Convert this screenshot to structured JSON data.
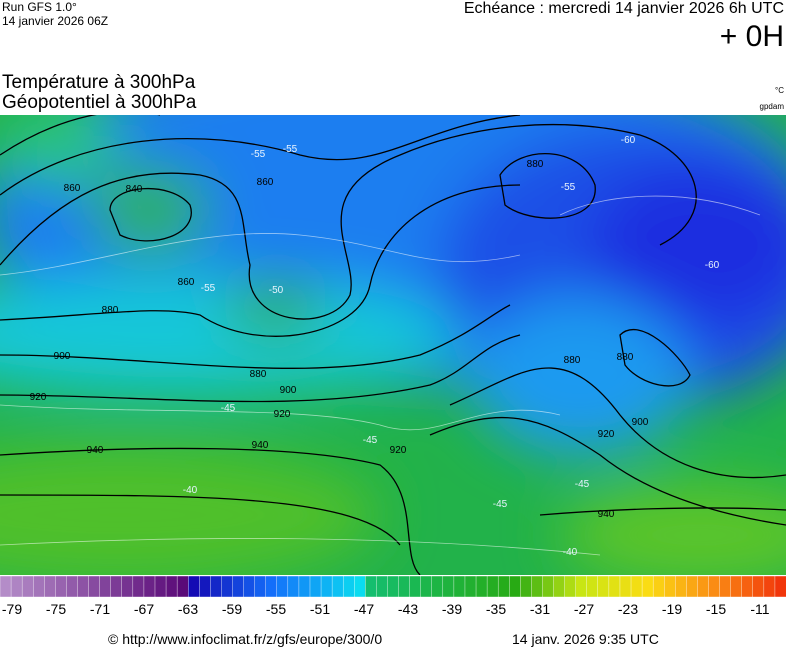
{
  "header": {
    "run": "Run GFS 1.0°",
    "run_date": "14 janvier 2026 06Z",
    "valid": "Echéance : mercredi 14 janvier 2026 6h UTC",
    "lead": "+ 0H",
    "title1": "Température à 300hPa",
    "title2": "Géopotentiel à 300hPa",
    "unit1": "°C",
    "unit2": "gpdam"
  },
  "contour_labels": [
    "860",
    "840",
    "860",
    "880",
    "880",
    "900",
    "920",
    "940",
    "860",
    "880",
    "900",
    "920",
    "940",
    "920",
    "880",
    "880",
    "900",
    "920",
    "940",
    "-55",
    "-55",
    "-60",
    "-55",
    "-50",
    "-55",
    "-60",
    "-45",
    "-45",
    "-40",
    "-45",
    "-40",
    "-45"
  ],
  "colorbar": {
    "labels": [
      "-79",
      "-75",
      "-71",
      "-67",
      "-63",
      "-59",
      "-55",
      "-51",
      "-47",
      "-43",
      "-39",
      "-35",
      "-31",
      "-27",
      "-23",
      "-19",
      "-15",
      "-11"
    ]
  },
  "footer": {
    "url": "© http://www.infoclimat.fr/z/gfs/europe/300/0",
    "time": "14 janv. 2026  9:35 UTC"
  }
}
